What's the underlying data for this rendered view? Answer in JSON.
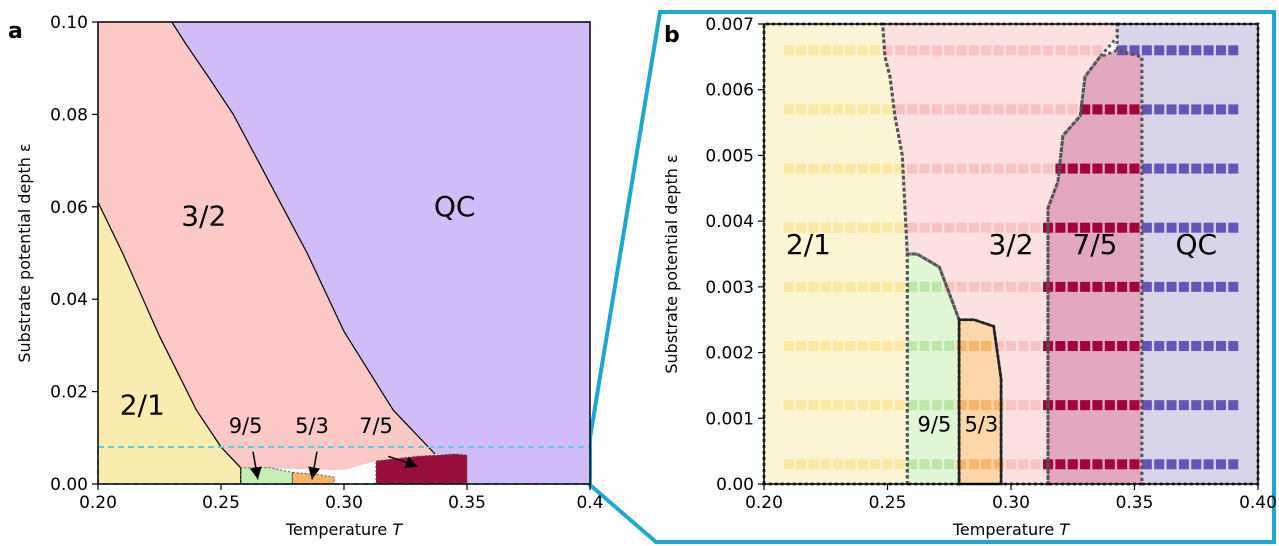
{
  "chart_data": [
    {
      "panel": "a",
      "type": "area",
      "xlabel": "Temperature",
      "xlabel_italic": "T",
      "ylabel": "Substrate potential depth ε",
      "xlim": [
        0.2,
        0.4
      ],
      "ylim": [
        0.0,
        0.1
      ],
      "xticks": [
        0.2,
        0.25,
        0.3,
        0.35,
        0.4
      ],
      "xtick_labels": [
        "0.20",
        "0.25",
        "0.30",
        "0.35",
        "0.4"
      ],
      "yticks": [
        0.0,
        0.02,
        0.04,
        0.06,
        0.08,
        0.1
      ],
      "ytick_labels": [
        "0.00",
        "0.02",
        "0.04",
        "0.06",
        "0.08",
        "0.10"
      ],
      "regions": [
        {
          "name": "QC",
          "color": "#d1bcf8",
          "polygon": [
            [
              0.23,
              0.1
            ],
            [
              0.4,
              0.1
            ],
            [
              0.4,
              0.0
            ],
            [
              0.35,
              0.0
            ],
            [
              0.35,
              0.0065
            ],
            [
              0.337,
              0.0065
            ],
            [
              0.32,
              0.016
            ],
            [
              0.3,
              0.033
            ],
            [
              0.285,
              0.05
            ],
            [
              0.27,
              0.065
            ],
            [
              0.255,
              0.08
            ],
            [
              0.245,
              0.088
            ],
            [
              0.236,
              0.095
            ]
          ]
        },
        {
          "name": "3/2",
          "color": "#fcc9c7",
          "polygon": [
            [
              0.2,
              0.1
            ],
            [
              0.23,
              0.1
            ],
            [
              0.236,
              0.095
            ],
            [
              0.245,
              0.088
            ],
            [
              0.255,
              0.08
            ],
            [
              0.27,
              0.065
            ],
            [
              0.285,
              0.05
            ],
            [
              0.3,
              0.033
            ],
            [
              0.32,
              0.016
            ],
            [
              0.337,
              0.0065
            ],
            [
              0.337,
              0.005
            ],
            [
              0.313,
              0.005
            ],
            [
              0.3,
              0.003
            ],
            [
              0.258,
              0.0035
            ],
            [
              0.25,
              0.008
            ],
            [
              0.24,
              0.016
            ],
            [
              0.225,
              0.032
            ],
            [
              0.21,
              0.05
            ],
            [
              0.2,
              0.061
            ]
          ]
        },
        {
          "name": "2/1",
          "color": "#f9ecae",
          "polygon": [
            [
              0.2,
              0.061
            ],
            [
              0.21,
              0.05
            ],
            [
              0.225,
              0.032
            ],
            [
              0.24,
              0.016
            ],
            [
              0.25,
              0.008
            ],
            [
              0.258,
              0.0035
            ],
            [
              0.258,
              0.0
            ],
            [
              0.2,
              0.0
            ]
          ]
        },
        {
          "name": "9/5",
          "color": "#c7eeb2",
          "polygon": [
            [
              0.258,
              0.0
            ],
            [
              0.258,
              0.0035
            ],
            [
              0.27,
              0.0035
            ],
            [
              0.279,
              0.0025
            ],
            [
              0.279,
              0.0
            ]
          ]
        },
        {
          "name": "5/3",
          "color": "#fdb462",
          "polygon": [
            [
              0.279,
              0.0
            ],
            [
              0.279,
              0.0025
            ],
            [
              0.29,
              0.002
            ],
            [
              0.296,
              0.0015
            ],
            [
              0.296,
              0.0
            ]
          ]
        },
        {
          "name": "7/5",
          "color": "#980f3f",
          "polygon": [
            [
              0.313,
              0.0
            ],
            [
              0.313,
              0.005
            ],
            [
              0.33,
              0.006
            ],
            [
              0.345,
              0.0065
            ],
            [
              0.35,
              0.0063
            ],
            [
              0.35,
              0.0
            ]
          ]
        }
      ],
      "region_labels": [
        {
          "text": "QC",
          "x": 0.345,
          "y": 0.058
        },
        {
          "text": "3/2",
          "x": 0.243,
          "y": 0.056
        },
        {
          "text": "2/1",
          "x": 0.218,
          "y": 0.015
        },
        {
          "text": "9/5",
          "x": 0.26,
          "y": 0.011
        },
        {
          "text": "5/3",
          "x": 0.287,
          "y": 0.011
        },
        {
          "text": "7/5",
          "x": 0.313,
          "y": 0.011
        }
      ],
      "arrows": [
        {
          "label": "9/5",
          "from": [
            0.263,
            0.007
          ],
          "to": [
            0.265,
            0.001
          ]
        },
        {
          "label": "5/3",
          "from": [
            0.289,
            0.007
          ],
          "to": [
            0.287,
            0.001
          ]
        },
        {
          "label": "7/5",
          "from": [
            0.318,
            0.006
          ],
          "to": [
            0.33,
            0.0038
          ]
        }
      ],
      "zoom_box": {
        "xlim": [
          0.2,
          0.4
        ],
        "ylim": [
          0.0,
          0.008
        ],
        "color": "#66ccdd"
      }
    },
    {
      "panel": "b",
      "type": "scatter",
      "xlabel": "Temperature",
      "xlabel_italic": "T",
      "ylabel": "Substrate potential depth  ε",
      "xlim": [
        0.2,
        0.4
      ],
      "ylim": [
        0.0,
        0.007
      ],
      "xticks": [
        0.2,
        0.25,
        0.3,
        0.35,
        0.4
      ],
      "xtick_labels": [
        "0.20",
        "0.25",
        "0.30",
        "0.35",
        "0.40"
      ],
      "yticks": [
        0.0,
        0.001,
        0.002,
        0.003,
        0.004,
        0.005,
        0.006,
        0.007
      ],
      "ytick_labels": [
        "0.00",
        "0.001",
        "0.002",
        "0.003",
        "0.004",
        "0.005",
        "0.006",
        "0.007"
      ],
      "grid_x": [
        0.21,
        0.215,
        0.22,
        0.225,
        0.23,
        0.235,
        0.24,
        0.245,
        0.25,
        0.255,
        0.26,
        0.265,
        0.27,
        0.275,
        0.28,
        0.285,
        0.29,
        0.295,
        0.3,
        0.305,
        0.31,
        0.315,
        0.32,
        0.325,
        0.33,
        0.335,
        0.34,
        0.345,
        0.35,
        0.355,
        0.36,
        0.365,
        0.37,
        0.375,
        0.38,
        0.385,
        0.39
      ],
      "grid_y": [
        0.0003,
        0.0012,
        0.0021,
        0.003,
        0.0039,
        0.0048,
        0.0057,
        0.0066
      ],
      "regions": [
        {
          "name": "2/1",
          "color": "#f9ecae",
          "polygon": [
            [
              0.2,
              0.0
            ],
            [
              0.2,
              0.007
            ],
            [
              0.248,
              0.007
            ],
            [
              0.249,
              0.0065
            ],
            [
              0.251,
              0.0062
            ],
            [
              0.253,
              0.0056
            ],
            [
              0.256,
              0.005
            ],
            [
              0.258,
              0.0035
            ],
            [
              0.258,
              0.0
            ]
          ]
        },
        {
          "name": "3/2",
          "color": "#fcc9c7",
          "polygon": [
            [
              0.248,
              0.007
            ],
            [
              0.343,
              0.007
            ],
            [
              0.343,
              0.0068
            ],
            [
              0.336,
              0.0065
            ],
            [
              0.33,
              0.0062
            ],
            [
              0.328,
              0.0056
            ],
            [
              0.321,
              0.0053
            ],
            [
              0.319,
              0.0046
            ],
            [
              0.315,
              0.0042
            ],
            [
              0.315,
              0.0
            ],
            [
              0.296,
              0.0
            ],
            [
              0.296,
              0.0016
            ],
            [
              0.293,
              0.0024
            ],
            [
              0.285,
              0.0025
            ],
            [
              0.279,
              0.0025
            ],
            [
              0.271,
              0.0033
            ],
            [
              0.262,
              0.0035
            ],
            [
              0.258,
              0.0035
            ],
            [
              0.256,
              0.005
            ],
            [
              0.253,
              0.0056
            ],
            [
              0.251,
              0.0062
            ],
            [
              0.249,
              0.0065
            ]
          ]
        },
        {
          "name": "9/5",
          "color": "#c7eeb2",
          "polygon": [
            [
              0.258,
              0.0
            ],
            [
              0.258,
              0.0035
            ],
            [
              0.262,
              0.0035
            ],
            [
              0.271,
              0.0033
            ],
            [
              0.279,
              0.0025
            ],
            [
              0.279,
              0.0
            ]
          ]
        },
        {
          "name": "5/3",
          "color": "#fdb462",
          "polygon": [
            [
              0.279,
              0.0
            ],
            [
              0.279,
              0.0025
            ],
            [
              0.285,
              0.0025
            ],
            [
              0.293,
              0.0024
            ],
            [
              0.296,
              0.0016
            ],
            [
              0.296,
              0.0
            ]
          ]
        },
        {
          "name": "7/5",
          "color": "#c8608c",
          "polygon": [
            [
              0.315,
              0.0
            ],
            [
              0.315,
              0.0042
            ],
            [
              0.319,
              0.0046
            ],
            [
              0.321,
              0.0053
            ],
            [
              0.328,
              0.0056
            ],
            [
              0.33,
              0.0062
            ],
            [
              0.336,
              0.0065
            ],
            [
              0.343,
              0.0066
            ],
            [
              0.353,
              0.0065
            ],
            [
              0.353,
              0.0
            ]
          ]
        },
        {
          "name": "QC",
          "color": "#b9b0d8",
          "polygon": [
            [
              0.343,
              0.007
            ],
            [
              0.4,
              0.007
            ],
            [
              0.4,
              0.0
            ],
            [
              0.353,
              0.0
            ],
            [
              0.353,
              0.0065
            ],
            [
              0.343,
              0.0066
            ]
          ]
        }
      ],
      "point_colors": {
        "2/1": "#fbe9a2",
        "3/2": "#fbc2c2",
        "9/5": "#bde7a6",
        "5/3": "#fbb46a",
        "7/5": "#a3003e",
        "QC": "#6655b8"
      },
      "region_labels": [
        {
          "text": "2/1",
          "x": 0.218,
          "y": 0.0035
        },
        {
          "text": "3/2",
          "x": 0.3,
          "y": 0.0035
        },
        {
          "text": "7/5",
          "x": 0.334,
          "y": 0.0035
        },
        {
          "text": "QC",
          "x": 0.375,
          "y": 0.0035
        },
        {
          "text": "9/5",
          "x": 0.269,
          "y": 0.0008
        },
        {
          "text": "5/3",
          "x": 0.288,
          "y": 0.0008
        }
      ]
    }
  ],
  "panel_letters": [
    "a",
    "b"
  ],
  "zoom_connector_color": "#1fa7cd"
}
